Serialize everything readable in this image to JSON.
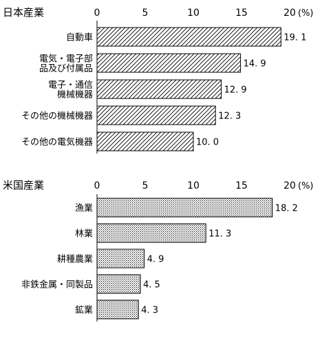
{
  "chart_data": [
    {
      "type": "bar",
      "orientation": "horizontal",
      "title": "日本産業",
      "categories": [
        [
          "自動車"
        ],
        [
          "電気・電子部",
          "品及び付属品"
        ],
        [
          "電子・通信",
          "機械機器"
        ],
        [
          "その他の機械機器"
        ],
        [
          "その他の電気機器"
        ]
      ],
      "values": [
        19.1,
        14.9,
        12.9,
        12.3,
        10.0
      ],
      "value_labels": [
        "19. 1",
        "14. 9",
        "12. 9",
        "12. 3",
        "10. 0"
      ],
      "xlim": [
        0,
        20
      ],
      "ticks": [
        "0",
        "5",
        "10",
        "15",
        "20"
      ],
      "unit": "(%)",
      "fill": "diagonal-hatch",
      "grid": false
    },
    {
      "type": "bar",
      "orientation": "horizontal",
      "title": "米国産業",
      "categories": [
        [
          "漁業"
        ],
        [
          "林業"
        ],
        [
          "耕種農業"
        ],
        [
          "非鉄金属・同製品"
        ],
        [
          "鉱業"
        ]
      ],
      "values": [
        18.2,
        11.3,
        4.9,
        4.5,
        4.3
      ],
      "value_labels": [
        "18. 2",
        "11. 3",
        "4. 9",
        "4. 5",
        "4. 3"
      ],
      "xlim": [
        0,
        20
      ],
      "ticks": [
        "0",
        "5",
        "10",
        "15",
        "20"
      ],
      "unit": "(%)",
      "fill": "dotted",
      "grid": false
    }
  ],
  "colors": {
    "bar_border": "#000000",
    "background": "#ffffff"
  }
}
